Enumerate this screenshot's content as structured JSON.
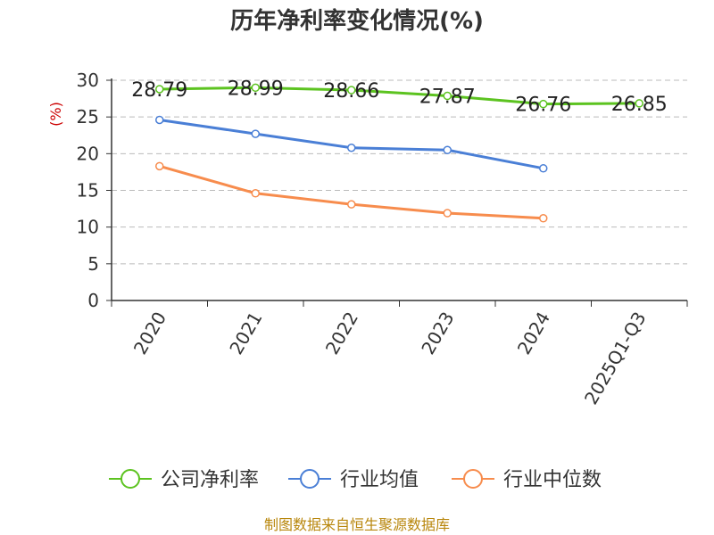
{
  "chart_data": {
    "type": "line",
    "title": "历年净利率变化情况(%)",
    "ylabel": "(%)",
    "xlabel": "",
    "categories": [
      "2020",
      "2021",
      "2022",
      "2023",
      "2024",
      "2025Q1-Q3"
    ],
    "ylim": [
      0,
      30
    ],
    "yticks": [
      0,
      5,
      10,
      15,
      20,
      25,
      30
    ],
    "grid": true,
    "legend_position": "bottom",
    "series": [
      {
        "name": "公司净利率",
        "color": "#5cc320",
        "values": [
          28.79,
          28.99,
          28.66,
          27.87,
          26.76,
          26.85
        ],
        "show_labels": true
      },
      {
        "name": "行业均值",
        "color": "#4a7fd6",
        "values": [
          24.6,
          22.7,
          20.8,
          20.5,
          18.0,
          null
        ],
        "show_labels": false
      },
      {
        "name": "行业中位数",
        "color": "#f78c4d",
        "values": [
          18.3,
          14.6,
          13.1,
          11.9,
          11.2,
          null
        ],
        "show_labels": false
      }
    ]
  },
  "source_text": "制图数据来自恒生聚源数据库"
}
